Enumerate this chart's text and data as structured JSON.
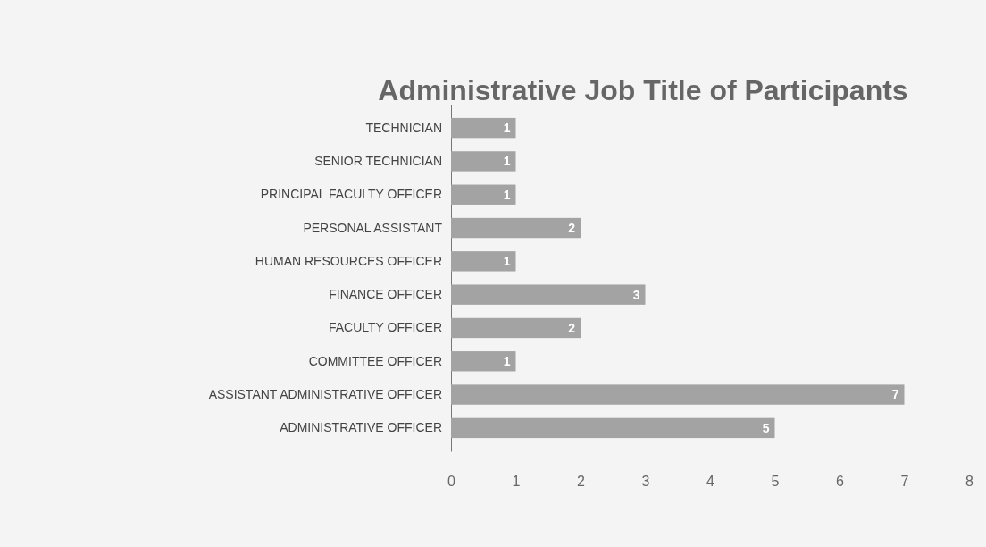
{
  "chart_data": {
    "type": "bar",
    "orientation": "horizontal",
    "title": "Administrative Job Title of Participants",
    "categories": [
      "TECHNICIAN",
      "SENIOR TECHNICIAN",
      "PRINCIPAL FACULTY OFFICER",
      "PERSONAL ASSISTANT",
      "HUMAN RESOURCES OFFICER",
      "FINANCE OFFICER",
      "FACULTY OFFICER",
      "COMMITTEE OFFICER",
      "ASSISTANT ADMINISTRATIVE OFFICER",
      "ADMINISTRATIVE OFFICER"
    ],
    "values": [
      1,
      1,
      1,
      2,
      1,
      3,
      2,
      1,
      7,
      5
    ],
    "color": "#a3a3a3",
    "xlim": [
      0,
      8
    ],
    "xticks": [
      0,
      1,
      2,
      3,
      4,
      5,
      6,
      7,
      8
    ],
    "data_labels": true,
    "grid": false
  }
}
